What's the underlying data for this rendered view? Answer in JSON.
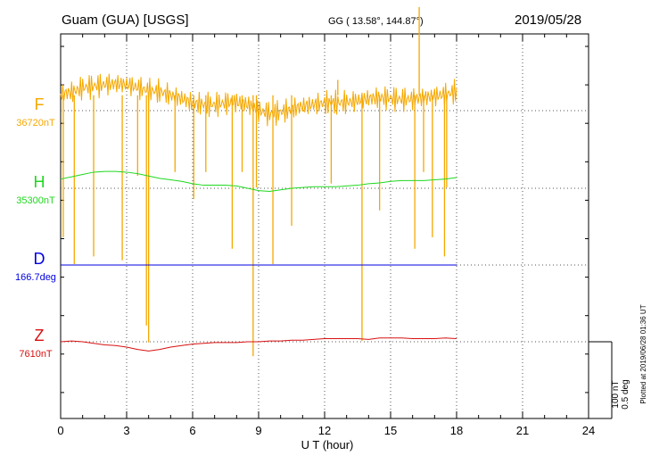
{
  "header": {
    "station": "Guam (GUA)  [USGS]",
    "coords": "GG ( 13.58°, 144.87°)",
    "date": "2019/05/28"
  },
  "footer": {
    "plotted": "Plotted at 2019/06/28 01:36 UT"
  },
  "chart_data": {
    "type": "line",
    "title": "Guam (GUA)  [USGS]",
    "xlabel": "U T (hour)",
    "xlim": [
      0,
      24
    ],
    "x_ticks": [
      "0",
      "3",
      "6",
      "9",
      "12",
      "15",
      "18",
      "21",
      "24"
    ],
    "grid": true,
    "scale_bar": {
      "line1": "100 nT",
      "line2": "0.5 deg"
    },
    "data_end_hour": 18.0,
    "colors": {
      "F": "#f5a800",
      "H": "#1ed81e",
      "D": "#0000e0",
      "Z": "#d81010"
    },
    "series": [
      {
        "name": "F",
        "baseline_label": "36720nT",
        "baseline": 36720,
        "x": [
          0,
          0.5,
          1,
          1.5,
          2,
          2.5,
          3,
          3.5,
          4,
          4.5,
          5,
          5.5,
          6,
          6.5,
          7,
          7.5,
          8,
          8.5,
          9,
          9.5,
          10,
          10.5,
          11,
          11.5,
          12,
          12.5,
          13,
          13.5,
          14,
          14.5,
          15,
          15.5,
          16,
          16.5,
          17,
          17.5,
          18
        ],
        "y": [
          36742,
          36744,
          36750,
          36752,
          36754,
          36755,
          36754,
          36750,
          36746,
          36745,
          36740,
          36736,
          36730,
          36728,
          36728,
          36730,
          36731,
          36728,
          36720,
          36716,
          36718,
          36722,
          36726,
          36728,
          36730,
          36730,
          36731,
          36733,
          36736,
          36737,
          36736,
          36735,
          36735,
          36737,
          36739,
          36741,
          36745
        ],
        "spikes": [
          {
            "x": 0.12,
            "y": 36555
          },
          {
            "x": 0.62,
            "y": 36520
          },
          {
            "x": 1.5,
            "y": 36530
          },
          {
            "x": 2.8,
            "y": 36525
          },
          {
            "x": 3.5,
            "y": 36635
          },
          {
            "x": 3.9,
            "y": 36440
          },
          {
            "x": 4.0,
            "y": 36418
          },
          {
            "x": 5.2,
            "y": 36640
          },
          {
            "x": 6.05,
            "y": 36605
          },
          {
            "x": 6.6,
            "y": 36640
          },
          {
            "x": 7.8,
            "y": 36540
          },
          {
            "x": 8.25,
            "y": 36640
          },
          {
            "x": 8.75,
            "y": 36400
          },
          {
            "x": 8.9,
            "y": 36620
          },
          {
            "x": 9.65,
            "y": 36520
          },
          {
            "x": 10.5,
            "y": 36570
          },
          {
            "x": 12.3,
            "y": 36625
          },
          {
            "x": 13.7,
            "y": 36420
          },
          {
            "x": 14.5,
            "y": 36590
          },
          {
            "x": 16.1,
            "y": 36540
          },
          {
            "x": 16.5,
            "y": 36640
          },
          {
            "x": 16.9,
            "y": 36555
          },
          {
            "x": 17.45,
            "y": 36530
          },
          {
            "x": 17.55,
            "y": 36620
          },
          {
            "x": 16.3,
            "y": 36855
          },
          {
            "x": 12.6,
            "y": 36760
          }
        ]
      },
      {
        "name": "H",
        "baseline_label": "35300nT",
        "baseline": 35300,
        "x": [
          0,
          0.5,
          1,
          1.5,
          2,
          2.5,
          3,
          3.5,
          4,
          4.5,
          5,
          5.5,
          6,
          6.5,
          7,
          7.5,
          8,
          8.5,
          9,
          9.5,
          10,
          10.5,
          11,
          11.5,
          12,
          12.5,
          13,
          13.5,
          14,
          14.5,
          15,
          15.5,
          16,
          16.5,
          17,
          17.5,
          18
        ],
        "y": [
          35312,
          35315,
          35318,
          35321,
          35322,
          35322,
          35321,
          35319,
          35316,
          35313,
          35311,
          35309,
          35306,
          35304,
          35304,
          35304,
          35303,
          35300,
          35297,
          35296,
          35298,
          35300,
          35301,
          35302,
          35302,
          35302,
          35303,
          35304,
          35306,
          35307,
          35309,
          35310,
          35310,
          35310,
          35311,
          35312,
          35314
        ]
      },
      {
        "name": "D",
        "baseline_label": "166.7deg",
        "baseline": 166.7,
        "x": [
          0,
          3,
          6,
          9,
          12,
          15,
          18
        ],
        "y": [
          166.7,
          166.7,
          166.7,
          166.7,
          166.7,
          166.7,
          166.7
        ]
      },
      {
        "name": "Z",
        "baseline_label": "7610nT",
        "baseline": 7610,
        "x": [
          0,
          0.5,
          1,
          1.5,
          2,
          2.5,
          3,
          3.5,
          4,
          4.5,
          5,
          5.5,
          6,
          6.5,
          7,
          7.5,
          8,
          8.5,
          9,
          9.5,
          10,
          10.5,
          11,
          11.5,
          12,
          12.5,
          13,
          13.5,
          14,
          14.5,
          15,
          15.5,
          16,
          16.5,
          17,
          17.5,
          18
        ],
        "y": [
          7610,
          7611,
          7610,
          7608,
          7606,
          7605,
          7603,
          7600,
          7598,
          7600,
          7603,
          7605,
          7607,
          7608,
          7609,
          7609,
          7609,
          7610,
          7610,
          7611,
          7611,
          7612,
          7612,
          7613,
          7614,
          7614,
          7614,
          7614,
          7613,
          7615,
          7615,
          7615,
          7614,
          7614,
          7614,
          7615,
          7614
        ]
      }
    ]
  }
}
